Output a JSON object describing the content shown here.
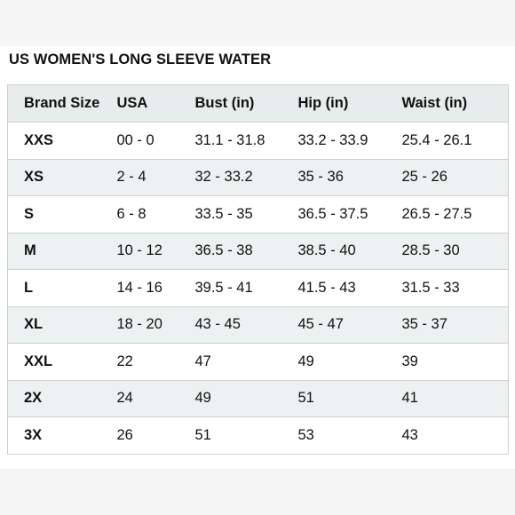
{
  "title": "US WOMEN'S LONG SLEEVE WATER",
  "table": {
    "headers": [
      "Brand Size",
      "USA",
      "Bust (in)",
      "Hip (in)",
      "Waist (in)"
    ],
    "rows": [
      [
        "XXS",
        "00 - 0",
        "31.1 - 31.8",
        "33.2 - 33.9",
        "25.4 - 26.1"
      ],
      [
        "XS",
        "2 - 4",
        "32 - 33.2",
        "35 - 36",
        "25 - 26"
      ],
      [
        "S",
        "6 - 8",
        "33.5 - 35",
        "36.5 - 37.5",
        "26.5 - 27.5"
      ],
      [
        "M",
        "10 - 12",
        "36.5 - 38",
        "38.5 - 40",
        "28.5 - 30"
      ],
      [
        "L",
        "14 - 16",
        "39.5 - 41",
        "41.5 - 43",
        "31.5 - 33"
      ],
      [
        "XL",
        "18 - 20",
        "43 - 45",
        "45 - 47",
        "35 - 37"
      ],
      [
        "XXL",
        "22",
        "47",
        "49",
        "39"
      ],
      [
        "2X",
        "24",
        "49",
        "51",
        "41"
      ],
      [
        "3X",
        "26",
        "51",
        "53",
        "43"
      ]
    ]
  },
  "colors": {
    "header_bg": "#e8ecec",
    "stripe_bg": "#eef1f1",
    "border": "#cfcfcf",
    "text": "#111111"
  }
}
